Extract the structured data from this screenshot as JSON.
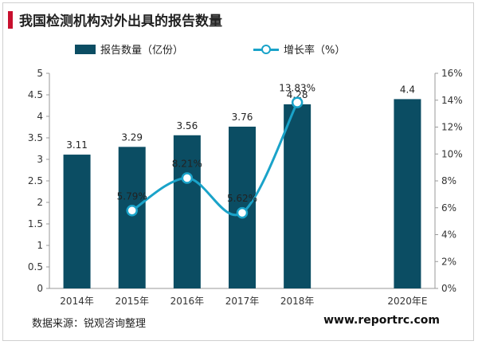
{
  "page": {
    "title": "我国检测机构对外出具的报告数量",
    "source": "数据来源：锐观咨询整理",
    "website": "www.reportrc.com"
  },
  "chart_data": {
    "type": "bar",
    "title": "我国检测机构对外出具的报告数量",
    "categories": [
      "2014年",
      "2015年",
      "2016年",
      "2017年",
      "2018年",
      "2020年E"
    ],
    "series": [
      {
        "name": "报告数量（亿份）",
        "type": "bar",
        "axis": "left",
        "color": "#0b4d63",
        "values": [
          3.11,
          3.29,
          3.56,
          3.76,
          4.28,
          4.4
        ],
        "labels": [
          "3.11",
          "3.29",
          "3.56",
          "3.76",
          "4.28",
          "4.4"
        ]
      },
      {
        "name": "增长率（%）",
        "type": "line",
        "axis": "right",
        "color": "#1aa3c9",
        "values": [
          null,
          5.79,
          8.21,
          5.62,
          13.83,
          null
        ],
        "labels": [
          "",
          "5.79%",
          "8.21%",
          "5.62%",
          "13.83%",
          ""
        ]
      }
    ],
    "y_left": {
      "min": 0,
      "max": 5,
      "ticks": [
        "0",
        "0.5",
        "1",
        "1.5",
        "2",
        "2.5",
        "3",
        "3.5",
        "4",
        "4.5",
        "5"
      ]
    },
    "y_right": {
      "min": 0,
      "max": 16,
      "ticks": [
        "0%",
        "2%",
        "4%",
        "6%",
        "8%",
        "10%",
        "12%",
        "14%",
        "16%"
      ]
    },
    "legend_position": "top",
    "grid": false
  }
}
